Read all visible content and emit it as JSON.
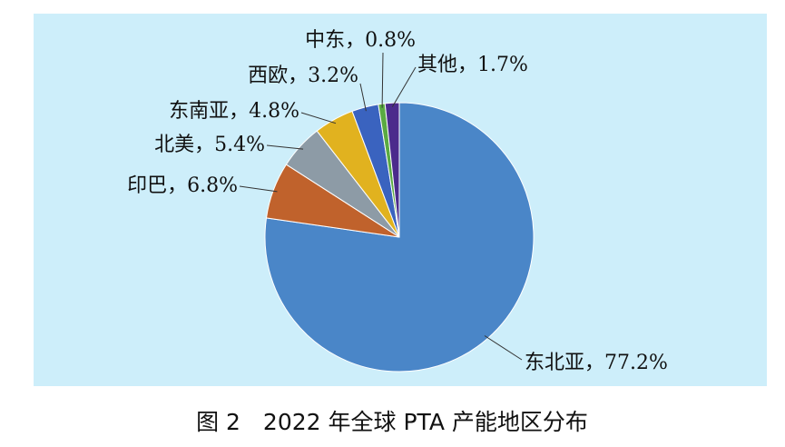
{
  "chart_data": {
    "type": "pie",
    "title": "图 2　2022 年全球 PTA 产能地区分布",
    "categories": [
      "东北亚",
      "印巴",
      "北美",
      "东南亚",
      "西欧",
      "中东",
      "其他"
    ],
    "values": [
      77.2,
      6.8,
      5.4,
      4.8,
      3.2,
      0.8,
      1.7
    ],
    "value_labels": [
      "77.2%",
      "6.8%",
      "5.4%",
      "4.8%",
      "3.2%",
      "0.8%",
      "1.7%"
    ],
    "label_separator": "，",
    "colors": [
      "#4a86c8",
      "#c0622c",
      "#8d9ba6",
      "#e1b21f",
      "#3a63bf",
      "#5aaa42",
      "#4b2b8c"
    ]
  }
}
